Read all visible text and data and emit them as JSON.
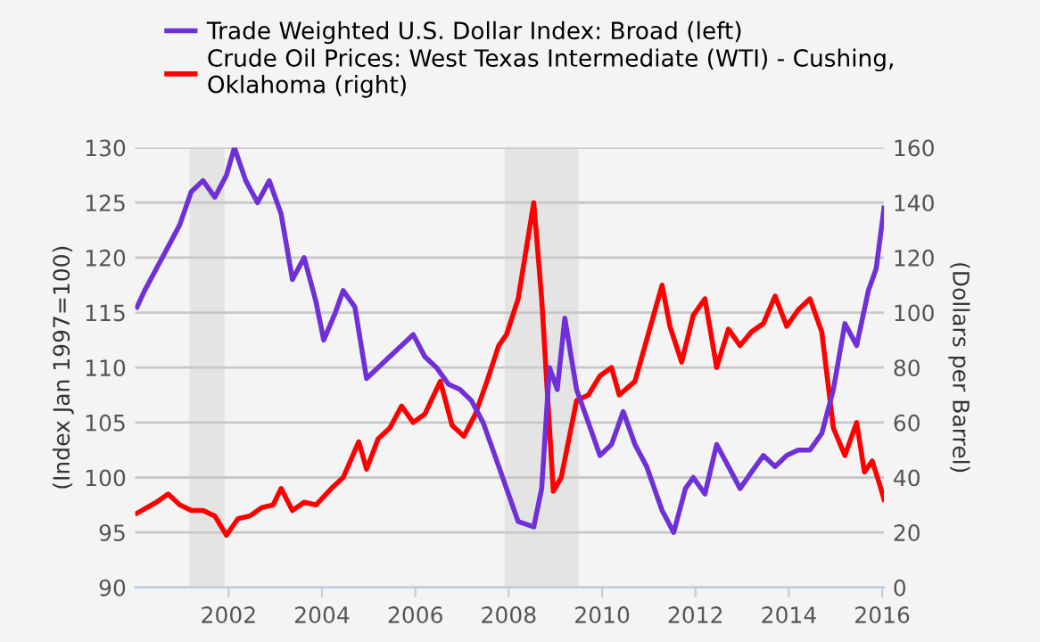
{
  "chart_data": {
    "type": "line",
    "xlabel": null,
    "ylabel": "(Index Jan 1997=100)",
    "y2label": "(Dollars per Barrel)",
    "xlim": [
      "2000-01-01",
      "2016-01-15"
    ],
    "xticks": [
      {
        "value": "2002-01-01",
        "label": "2002"
      },
      {
        "value": "2004-01-01",
        "label": "2004"
      },
      {
        "value": "2006-01-01",
        "label": "2006"
      },
      {
        "value": "2008-01-01",
        "label": "2008"
      },
      {
        "value": "2010-01-01",
        "label": "2010"
      },
      {
        "value": "2012-01-01",
        "label": "2012"
      },
      {
        "value": "2014-01-01",
        "label": "2014"
      },
      {
        "value": "2016-01-01",
        "label": "2016"
      }
    ],
    "ylim": [
      90,
      130
    ],
    "yticks": [
      90,
      95,
      100,
      105,
      110,
      115,
      120,
      125,
      130
    ],
    "y2lim": [
      0,
      160
    ],
    "y2ticks": [
      0,
      20,
      40,
      60,
      80,
      100,
      120,
      140,
      160
    ],
    "grid": "y",
    "legend": "top",
    "line_style": "solid",
    "bands": [
      {
        "axis": "x",
        "from": "2001-03-01",
        "to": "2001-11-30",
        "color": "#e4e4e4"
      },
      {
        "axis": "x",
        "from": "2007-12-01",
        "to": "2009-06-30",
        "color": "#e4e4e4"
      }
    ],
    "series": [
      {
        "name": "Trade Weighted U.S. Dollar Index: Broad (left)",
        "color": "#7030d8",
        "x": [
          "2000-01",
          "2000-03",
          "2000-06",
          "2000-09",
          "2000-12",
          "2001-03",
          "2001-06",
          "2001-09",
          "2001-12",
          "2002-02",
          "2002-05",
          "2002-08",
          "2002-11",
          "2003-02",
          "2003-05",
          "2003-08",
          "2003-11",
          "2004-01",
          "2004-04",
          "2004-06",
          "2004-09",
          "2004-12",
          "2005-03",
          "2005-06",
          "2005-09",
          "2005-12",
          "2006-03",
          "2006-06",
          "2006-09",
          "2006-12",
          "2007-03",
          "2007-06",
          "2007-09",
          "2007-12",
          "2008-03",
          "2008-07",
          "2008-09",
          "2008-11",
          "2009-01",
          "2009-03",
          "2009-06",
          "2009-09",
          "2009-12",
          "2010-03",
          "2010-06",
          "2010-09",
          "2010-12",
          "2011-04",
          "2011-07",
          "2011-10",
          "2011-12",
          "2012-03",
          "2012-06",
          "2012-09",
          "2012-12",
          "2013-03",
          "2013-06",
          "2013-09",
          "2013-12",
          "2014-03",
          "2014-06",
          "2014-09",
          "2014-12",
          "2015-03",
          "2015-06",
          "2015-09",
          "2015-11",
          "2016-01"
        ],
        "values": [
          115.5,
          117,
          119,
          121,
          123,
          126,
          127,
          125.5,
          127.5,
          130,
          127,
          125,
          127,
          124,
          118,
          120,
          116,
          112.5,
          115,
          117,
          115.5,
          109,
          110,
          111,
          112,
          113,
          111,
          110,
          108.5,
          108,
          107,
          105,
          102,
          99,
          96,
          95.5,
          99,
          110,
          108,
          114.5,
          108,
          105,
          102,
          103,
          106,
          103,
          101,
          97,
          95,
          99,
          100,
          98.5,
          103,
          101,
          99,
          100.5,
          102,
          101,
          102,
          102.5,
          102.5,
          104,
          108,
          114,
          112,
          117,
          119,
          124.5
        ]
      },
      {
        "name": "Crude Oil Prices: West Texas Intermediate (WTI) - Cushing, Oklahoma (right)",
        "color": "#ff0000",
        "axis": "y2",
        "x": [
          "2000-01",
          "2000-06",
          "2000-09",
          "2000-12",
          "2001-03",
          "2001-06",
          "2001-09",
          "2001-12",
          "2002-03",
          "2002-06",
          "2002-09",
          "2002-12",
          "2003-02",
          "2003-05",
          "2003-08",
          "2003-11",
          "2004-03",
          "2004-06",
          "2004-10",
          "2004-12",
          "2005-03",
          "2005-06",
          "2005-09",
          "2005-12",
          "2006-03",
          "2006-07",
          "2006-10",
          "2007-01",
          "2007-04",
          "2007-07",
          "2007-10",
          "2007-12",
          "2008-03",
          "2008-07",
          "2008-09",
          "2008-12",
          "2009-02",
          "2009-06",
          "2009-09",
          "2009-12",
          "2010-03",
          "2010-05",
          "2010-09",
          "2010-12",
          "2011-04",
          "2011-06",
          "2011-09",
          "2011-12",
          "2012-03",
          "2012-06",
          "2012-09",
          "2012-12",
          "2013-03",
          "2013-06",
          "2013-09",
          "2013-12",
          "2014-03",
          "2014-06",
          "2014-09",
          "2014-12",
          "2015-03",
          "2015-06",
          "2015-08",
          "2015-10",
          "2015-12",
          "2016-01"
        ],
        "values": [
          27,
          31,
          34,
          30,
          28,
          28,
          26,
          19,
          25,
          26,
          29,
          30,
          36,
          28,
          31,
          30,
          36,
          40,
          53,
          43,
          54,
          58,
          66,
          60,
          63,
          75,
          59,
          55,
          63,
          75,
          88,
          92,
          105,
          140,
          105,
          35,
          40,
          68,
          70,
          77,
          80,
          70,
          75,
          90,
          110,
          95,
          82,
          99,
          105,
          80,
          94,
          88,
          93,
          96,
          106,
          95,
          101,
          105,
          93,
          58,
          48,
          60,
          42,
          46,
          37,
          32
        ]
      }
    ]
  }
}
